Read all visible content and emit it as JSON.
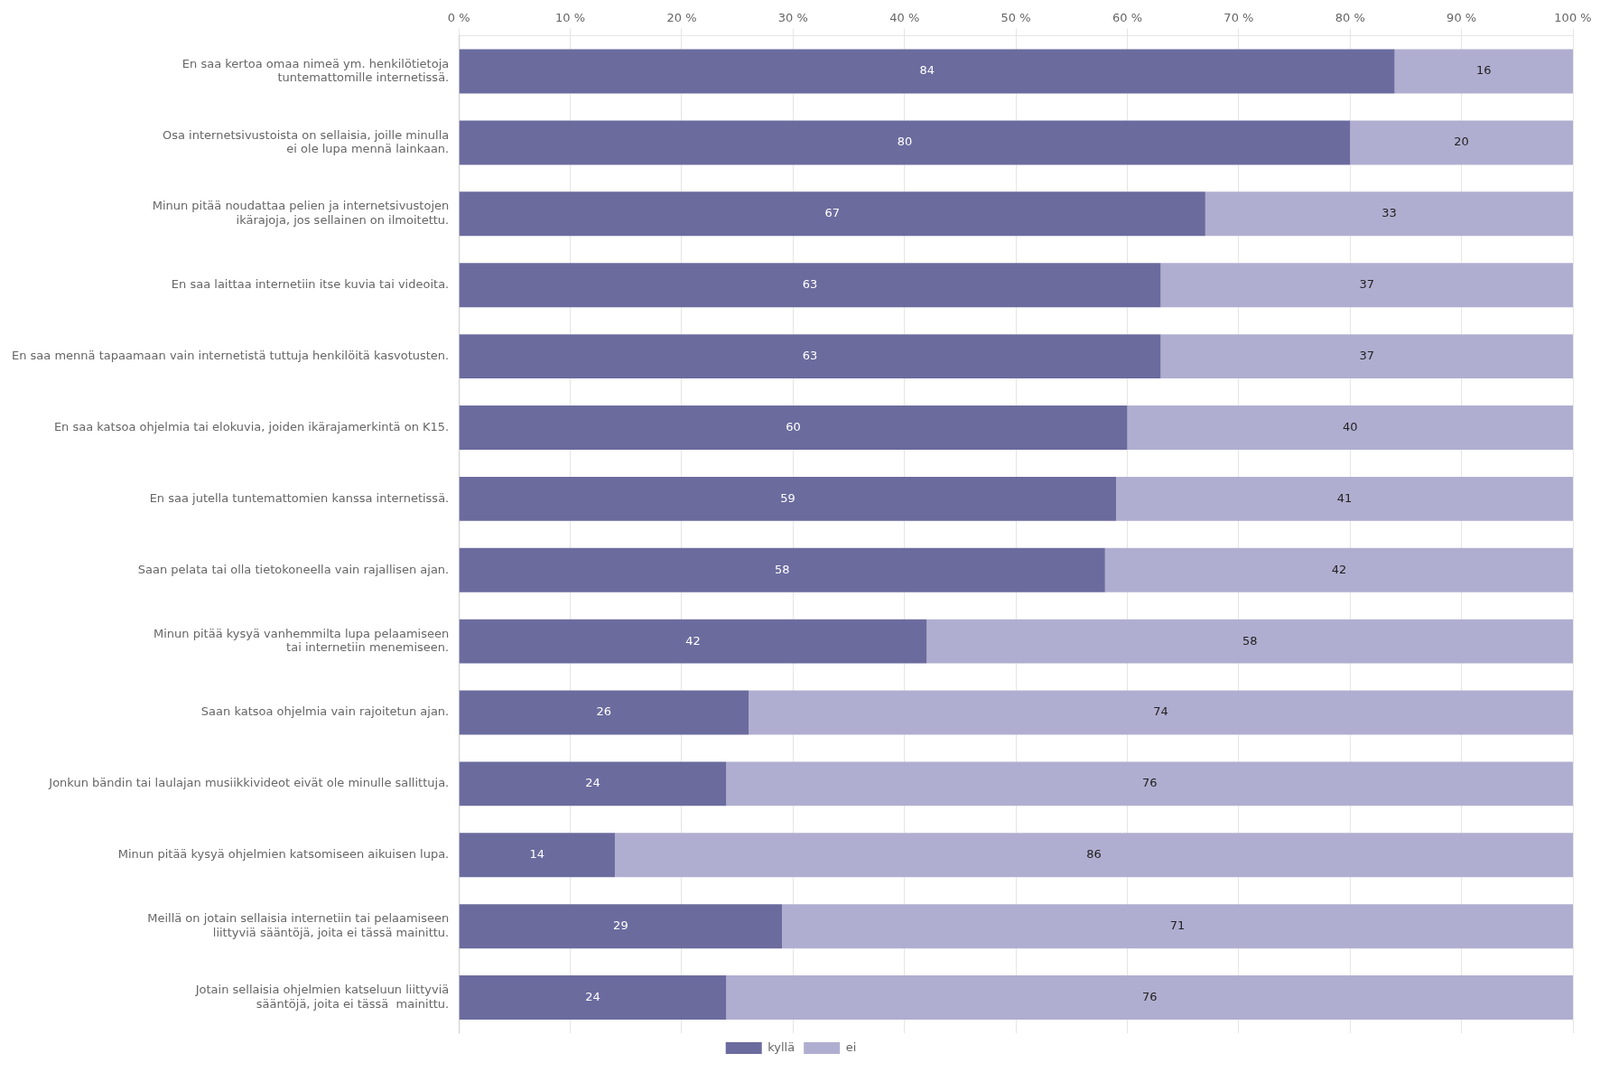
{
  "chart_data": {
    "type": "bar",
    "orientation": "horizontal",
    "stacked": true,
    "categories": [
      "En saa kertoa omaa nimeä ym. henkilötietoja\ntuntemattomille internetissä.",
      "Osa internetsivustoista on sellaisia, joille minulla\nei ole lupa mennä lainkaan.",
      "Minun pitää noudattaa pelien ja internetsivustojen\nikärajoja, jos sellainen on ilmoitettu.",
      "En saa laittaa internetiin itse kuvia tai videoita.",
      "En saa mennä tapaamaan vain internetistä tuttuja henkilöitä kasvotusten.",
      "En saa katsoa ohjelmia tai elokuvia, joiden ikärajamerkintä on K15.",
      "En saa jutella tuntemattomien kanssa internetissä.",
      "Saan pelata tai olla tietokoneella vain rajallisen ajan.",
      "Minun pitää kysyä vanhemmilta lupa pelaamiseen\ntai internetiin menemiseen.",
      "Saan katsoa ohjelmia vain rajoitetun ajan.",
      "Jonkun bändin tai laulajan musiikkivideot eivät ole minulle sallittuja.",
      "Minun pitää kysyä ohjelmien katsomiseen aikuisen lupa.",
      "Meillä on jotain sellaisia internetiin tai pelaamiseen\nliittyviä sääntöjä, joita ei tässä mainittu.",
      "Jotain sellaisia ohjelmien katseluun liittyviä\nsääntöjä, joita ei tässä  mainittu."
    ],
    "series": [
      {
        "name": "kyllä",
        "color": "#6b6b9e",
        "values": [
          84,
          80,
          67,
          63,
          63,
          60,
          59,
          58,
          42,
          26,
          24,
          14,
          29,
          24
        ]
      },
      {
        "name": "ei",
        "color": "#b0aed0",
        "values": [
          16,
          20,
          33,
          37,
          37,
          40,
          41,
          42,
          58,
          74,
          76,
          86,
          71,
          76
        ]
      }
    ],
    "xlim": [
      0,
      100
    ],
    "xticks": [
      {
        "value": 0,
        "label": "0 %"
      },
      {
        "value": 10,
        "label": "10 %"
      },
      {
        "value": 20,
        "label": "20 %"
      },
      {
        "value": 30,
        "label": "30 %"
      },
      {
        "value": 40,
        "label": "40 %"
      },
      {
        "value": 50,
        "label": "50 %"
      },
      {
        "value": 60,
        "label": "60 %"
      },
      {
        "value": 70,
        "label": "70 %"
      },
      {
        "value": 80,
        "label": "80 %"
      },
      {
        "value": 90,
        "label": "90 %"
      },
      {
        "value": 100,
        "label": "100 %"
      }
    ],
    "grid": true,
    "legend": "bottom",
    "data_labels": true
  }
}
